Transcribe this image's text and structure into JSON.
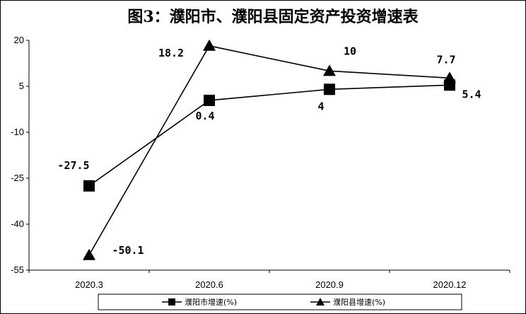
{
  "chart_data": {
    "type": "line",
    "title": "图3：濮阳市、濮阳县固定资产投资增速表",
    "categories": [
      "2020.3",
      "2020.6",
      "2020.9",
      "2020.12"
    ],
    "y_ticks": [
      "20",
      "5",
      "-10",
      "-25",
      "-40",
      "-55"
    ],
    "ylim": [
      -55,
      20
    ],
    "grid": false,
    "legend_position": "bottom",
    "series": [
      {
        "name": "濮阳市增速(%)",
        "marker": "square",
        "values": [
          -27.5,
          0.4,
          4,
          5.4
        ],
        "labels": [
          "-27.5",
          "0.4",
          "4",
          "5.4"
        ]
      },
      {
        "name": "濮阳县增速(%)",
        "marker": "triangle",
        "values": [
          -50.1,
          18.2,
          10,
          7.7
        ],
        "labels": [
          "-50.1",
          "18.2",
          "10",
          "7.7"
        ]
      }
    ]
  }
}
